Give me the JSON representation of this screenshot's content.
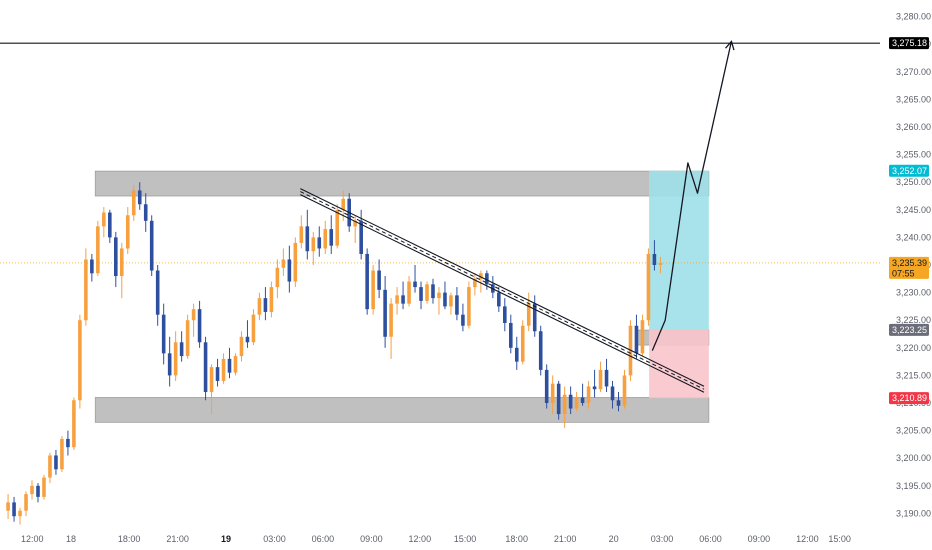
{
  "chart_data": {
    "type": "candlestick",
    "y_axis": {
      "range": [
        3187,
        3283
      ],
      "ticks": [
        "3,280.00",
        "3,275.00",
        "3,270.00",
        "3,265.00",
        "3,260.00",
        "3,255.00",
        "3,250.00",
        "3,245.00",
        "3,240.00",
        "3,235.00",
        "3,230.00",
        "3,225.00",
        "3,220.00",
        "3,215.00",
        "3,210.00",
        "3,205.00",
        "3,200.00",
        "3,195.00",
        "3,190.00"
      ],
      "tick_values": [
        3280,
        3275,
        3270,
        3265,
        3260,
        3255,
        3250,
        3245,
        3240,
        3235,
        3230,
        3225,
        3220,
        3215,
        3210,
        3205,
        3200,
        3195,
        3190
      ]
    },
    "x_axis": {
      "range_hours": [
        -14,
        40.5
      ],
      "ticks": [
        {
          "label": "12:00",
          "h": -12
        },
        {
          "label": "18",
          "h": -9.6
        },
        {
          "label": "18:00",
          "h": -6
        },
        {
          "label": "21:00",
          "h": -3
        },
        {
          "label": "19",
          "h": 0,
          "bold": true
        },
        {
          "label": "03:00",
          "h": 3
        },
        {
          "label": "06:00",
          "h": 6
        },
        {
          "label": "09:00",
          "h": 9
        },
        {
          "label": "12:00",
          "h": 12
        },
        {
          "label": "15:00",
          "h": 14.8
        },
        {
          "label": "18:00",
          "h": 18
        },
        {
          "label": "21:00",
          "h": 21
        },
        {
          "label": "20",
          "h": 24
        },
        {
          "label": "03:00",
          "h": 27
        },
        {
          "label": "06:00",
          "h": 30
        },
        {
          "label": "09:00",
          "h": 33
        },
        {
          "label": "12:00",
          "h": 36
        },
        {
          "label": "15:00",
          "h": 38
        }
      ]
    },
    "price_tags": [
      {
        "name": "target-level",
        "label": "3,275.18",
        "value": 3275.18,
        "bg": "#000000",
        "fg": "#ffffff"
      },
      {
        "name": "take-profit",
        "label": "3,252.07",
        "value": 3252.07,
        "bg": "#00bcd4",
        "fg": "#ffffff"
      },
      {
        "name": "current-price",
        "label": "3,235.39",
        "sub": "07:55",
        "value": 3235.39,
        "bg": "#f5a623",
        "fg": "#131722"
      },
      {
        "name": "entry",
        "label": "3,223.25",
        "value": 3223.25,
        "bg": "#6b6e78",
        "fg": "#ffffff"
      },
      {
        "name": "stop-loss",
        "label": "3,210.89",
        "value": 3210.89,
        "bg": "#f23645",
        "fg": "#ffffff"
      }
    ],
    "current_price": 3235.39,
    "target_line": 3275.18,
    "zones": [
      {
        "name": "resistance-zone",
        "h0": -8.1,
        "h1": 29.9,
        "y0": 3247.5,
        "y1": 3252.0
      },
      {
        "name": "support-zone",
        "h0": -8.1,
        "h1": 29.9,
        "y0": 3206.5,
        "y1": 3211.0
      },
      {
        "name": "retest-zone",
        "h0": 25.4,
        "h1": 29.9,
        "y0": 3220.5,
        "y1": 3223.2
      }
    ],
    "position": {
      "h0": 26.2,
      "h1": 29.9,
      "entry": 3223.25,
      "take_profit": 3252.07,
      "stop_loss": 3210.89,
      "profit_color": "#9ee0ea",
      "loss_color": "#f8c5cb"
    },
    "trendline": {
      "h0": 4.6,
      "y0": 3248.3,
      "h1": 29.6,
      "y1": 3212.5
    },
    "projection": [
      {
        "h": 26.4,
        "y": 3219.5
      },
      {
        "h": 27.2,
        "y": 3225.0
      },
      {
        "h": 28.6,
        "y": 3253.5
      },
      {
        "h": 29.2,
        "y": 3248.0
      },
      {
        "h": 31.3,
        "y": 3275.5
      }
    ],
    "up_color": "#f7a040",
    "down_color": "#2d4f9e",
    "candles": [
      [
        3190.5,
        3193.5,
        3189.0,
        3192.0
      ],
      [
        3192.0,
        3193.0,
        3188.5,
        3189.5
      ],
      [
        3189.5,
        3191.0,
        3188.0,
        3190.5
      ],
      [
        3190.5,
        3194.0,
        3189.5,
        3193.5
      ],
      [
        3193.5,
        3196.0,
        3192.5,
        3195.0
      ],
      [
        3195.0,
        3195.5,
        3192.0,
        3193.0
      ],
      [
        3193.0,
        3197.0,
        3192.5,
        3196.5
      ],
      [
        3196.5,
        3201.0,
        3195.5,
        3200.5
      ],
      [
        3200.5,
        3201.5,
        3197.0,
        3198.0
      ],
      [
        3198.0,
        3204.0,
        3197.5,
        3203.5
      ],
      [
        3203.5,
        3205.0,
        3200.5,
        3202.0
      ],
      [
        3202.0,
        3211.0,
        3201.5,
        3210.5
      ],
      [
        3210.5,
        3226.0,
        3209.0,
        3225.0
      ],
      [
        3225.0,
        3238.0,
        3224.0,
        3236.0
      ],
      [
        3236.0,
        3237.0,
        3232.0,
        3233.5
      ],
      [
        3233.5,
        3243.0,
        3233.0,
        3242.0
      ],
      [
        3242.0,
        3245.5,
        3240.0,
        3244.5
      ],
      [
        3244.5,
        3245.0,
        3239.0,
        3240.0
      ],
      [
        3240.0,
        3241.0,
        3231.0,
        3233.0
      ],
      [
        3233.0,
        3239.0,
        3229.0,
        3238.0
      ],
      [
        3238.0,
        3245.5,
        3237.0,
        3244.0
      ],
      [
        3244.0,
        3249.5,
        3243.0,
        3248.5
      ],
      [
        3248.5,
        3250.0,
        3245.0,
        3246.0
      ],
      [
        3246.0,
        3248.0,
        3241.0,
        3243.0
      ],
      [
        3243.0,
        3244.0,
        3233.0,
        3234.0
      ],
      [
        3234.0,
        3235.0,
        3224.0,
        3226.0
      ],
      [
        3226.0,
        3228.0,
        3217.0,
        3219.0
      ],
      [
        3219.0,
        3222.0,
        3213.0,
        3215.0
      ],
      [
        3215.0,
        3223.0,
        3214.0,
        3221.0
      ],
      [
        3221.0,
        3223.0,
        3217.5,
        3218.5
      ],
      [
        3218.5,
        3226.0,
        3218.0,
        3225.0
      ],
      [
        3225.0,
        3228.0,
        3222.0,
        3227.0
      ],
      [
        3227.0,
        3228.5,
        3220.0,
        3221.0
      ],
      [
        3221.0,
        3222.0,
        3210.5,
        3212.0
      ],
      [
        3212.0,
        3217.0,
        3208.0,
        3216.5
      ],
      [
        3216.5,
        3218.0,
        3213.0,
        3214.0
      ],
      [
        3214.0,
        3219.0,
        3213.5,
        3218.0
      ],
      [
        3218.0,
        3220.0,
        3214.5,
        3215.5
      ],
      [
        3215.5,
        3219.0,
        3215.0,
        3218.5
      ],
      [
        3218.5,
        3223.0,
        3217.5,
        3222.0
      ],
      [
        3222.0,
        3225.0,
        3220.0,
        3221.0
      ],
      [
        3221.0,
        3227.0,
        3220.5,
        3226.0
      ],
      [
        3226.0,
        3230.0,
        3225.0,
        3229.0
      ],
      [
        3229.0,
        3231.0,
        3225.0,
        3226.5
      ],
      [
        3226.5,
        3232.0,
        3225.5,
        3231.0
      ],
      [
        3231.0,
        3236.0,
        3229.0,
        3234.5
      ],
      [
        3234.5,
        3238.0,
        3233.0,
        3236.0
      ],
      [
        3236.0,
        3238.5,
        3230.0,
        3232.0
      ],
      [
        3232.0,
        3240.0,
        3231.0,
        3239.0
      ],
      [
        3239.0,
        3244.0,
        3238.0,
        3242.0
      ],
      [
        3242.0,
        3245.0,
        3236.0,
        3237.5
      ],
      [
        3237.5,
        3241.0,
        3235.0,
        3240.0
      ],
      [
        3240.0,
        3242.0,
        3236.5,
        3238.0
      ],
      [
        3238.0,
        3243.0,
        3237.0,
        3241.5
      ],
      [
        3241.5,
        3244.0,
        3237.0,
        3238.5
      ],
      [
        3238.5,
        3246.0,
        3238.0,
        3245.0
      ],
      [
        3245.0,
        3248.5,
        3243.0,
        3247.0
      ],
      [
        3247.0,
        3248.0,
        3241.0,
        3242.0
      ],
      [
        3242.0,
        3244.0,
        3239.0,
        3243.0
      ],
      [
        3243.0,
        3245.0,
        3236.0,
        3237.0
      ],
      [
        3237.0,
        3238.0,
        3226.0,
        3227.0
      ],
      [
        3227.0,
        3235.0,
        3226.0,
        3234.0
      ],
      [
        3234.0,
        3236.0,
        3229.0,
        3230.5
      ],
      [
        3230.5,
        3233.0,
        3220.0,
        3222.0
      ],
      [
        3222.0,
        3229.0,
        3218.0,
        3228.0
      ],
      [
        3228.0,
        3231.0,
        3226.0,
        3229.5
      ],
      [
        3229.5,
        3232.0,
        3227.0,
        3228.0
      ],
      [
        3228.0,
        3233.0,
        3227.5,
        3232.0
      ],
      [
        3232.0,
        3235.0,
        3230.0,
        3231.0
      ],
      [
        3231.0,
        3232.0,
        3227.0,
        3228.5
      ],
      [
        3228.5,
        3232.0,
        3228.0,
        3231.5
      ],
      [
        3231.5,
        3232.5,
        3228.0,
        3229.0
      ],
      [
        3229.0,
        3231.0,
        3226.0,
        3230.0
      ],
      [
        3230.0,
        3232.0,
        3227.0,
        3227.5
      ],
      [
        3227.5,
        3230.0,
        3226.0,
        3229.5
      ],
      [
        3229.5,
        3231.0,
        3225.0,
        3226.0
      ],
      [
        3226.0,
        3228.0,
        3223.0,
        3224.0
      ],
      [
        3224.0,
        3232.0,
        3223.5,
        3231.0
      ],
      [
        3231.0,
        3233.5,
        3229.5,
        3232.5
      ],
      [
        3232.5,
        3234.0,
        3230.0,
        3233.5
      ],
      [
        3233.5,
        3234.0,
        3230.5,
        3231.5
      ],
      [
        3231.5,
        3233.0,
        3229.0,
        3230.0
      ],
      [
        3230.0,
        3231.0,
        3226.5,
        3227.5
      ],
      [
        3227.5,
        3229.0,
        3223.0,
        3224.5
      ],
      [
        3224.5,
        3226.0,
        3219.0,
        3220.0
      ],
      [
        3220.0,
        3222.0,
        3216.0,
        3217.5
      ],
      [
        3217.5,
        3225.0,
        3217.0,
        3224.0
      ],
      [
        3224.0,
        3230.0,
        3223.0,
        3228.0
      ],
      [
        3228.0,
        3229.5,
        3222.0,
        3223.0
      ],
      [
        3223.0,
        3224.0,
        3215.0,
        3216.0
      ],
      [
        3216.0,
        3217.0,
        3209.0,
        3210.0
      ],
      [
        3210.0,
        3215.0,
        3208.0,
        3213.5
      ],
      [
        3213.5,
        3214.0,
        3207.0,
        3208.0
      ],
      [
        3208.0,
        3213.0,
        3205.5,
        3211.5
      ],
      [
        3211.5,
        3213.0,
        3208.0,
        3209.0
      ],
      [
        3209.0,
        3212.0,
        3208.5,
        3211.0
      ],
      [
        3211.0,
        3213.5,
        3209.5,
        3210.0
      ],
      [
        3210.0,
        3214.0,
        3209.0,
        3213.0
      ],
      [
        3213.0,
        3216.0,
        3211.0,
        3212.5
      ],
      [
        3212.5,
        3217.5,
        3212.0,
        3216.0
      ],
      [
        3216.0,
        3218.0,
        3212.0,
        3213.0
      ],
      [
        3213.0,
        3214.0,
        3209.0,
        3210.5
      ],
      [
        3210.5,
        3212.0,
        3208.5,
        3209.5
      ],
      [
        3209.5,
        3216.0,
        3209.0,
        3215.0
      ],
      [
        3215.0,
        3225.0,
        3214.0,
        3224.0
      ],
      [
        3224.0,
        3226.0,
        3218.0,
        3219.0
      ],
      [
        3219.0,
        3226.0,
        3218.5,
        3225.0
      ],
      [
        3225.0,
        3238.0,
        3224.0,
        3237.0
      ],
      [
        3237.0,
        3239.5,
        3234.0,
        3235.0
      ],
      [
        3235.0,
        3236.5,
        3233.5,
        3235.4
      ]
    ]
  }
}
